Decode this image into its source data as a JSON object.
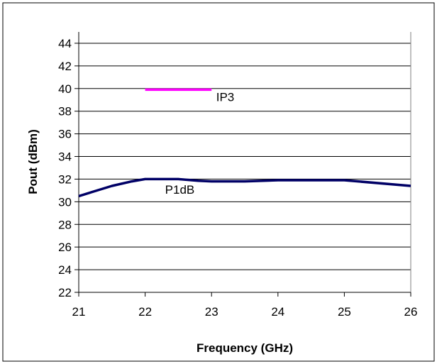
{
  "chart_data": {
    "type": "line",
    "title": "",
    "xlabel": "Frequency (GHz)",
    "ylabel": "Pout (dBm)",
    "xlim": [
      21,
      26
    ],
    "ylim": [
      22,
      45
    ],
    "x_ticks": [
      21,
      22,
      23,
      24,
      25,
      26
    ],
    "y_ticks": [
      22,
      24,
      26,
      28,
      30,
      32,
      34,
      36,
      38,
      40,
      42,
      44
    ],
    "grid": "horizontal",
    "legend": "none",
    "series": [
      {
        "name": "P1dB",
        "color": "#000066",
        "x": [
          21,
          21.5,
          21.8,
          22,
          22.5,
          22.8,
          23,
          23.5,
          24,
          24.5,
          25,
          26
        ],
        "y": [
          30.5,
          31.4,
          31.8,
          32.0,
          32.0,
          31.85,
          31.8,
          31.8,
          31.9,
          31.9,
          31.9,
          31.4
        ]
      },
      {
        "name": "IP3",
        "color": "#ff00ff",
        "x": [
          22,
          23
        ],
        "y": [
          39.9,
          39.9
        ]
      }
    ],
    "annotations": [
      {
        "text": "IP3",
        "x": 23.07,
        "y": 38.9
      },
      {
        "text": "P1dB",
        "x": 22.3,
        "y": 30.7
      }
    ]
  }
}
